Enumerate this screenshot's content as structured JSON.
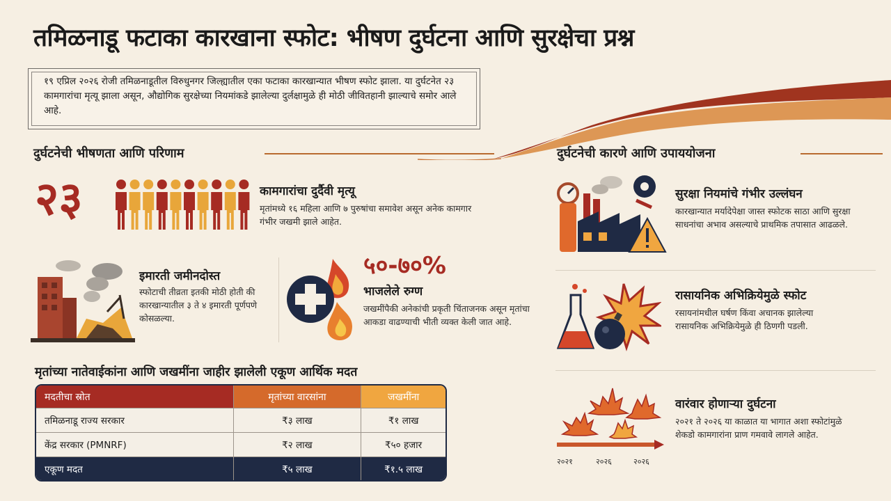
{
  "title": "तमिळनाडू फटाका कारखाना स्फोट: भीषण दुर्घटना आणि सुरक्षेचा प्रश्न",
  "intro": "१९ एप्रिल २०२६ रोजी तमिळनाडूतील विरुधुनगर जिल्ह्यातील एका फटाका कारखान्यात भीषण स्फोट झाला. या दुर्घटनेत २३ कामगारांचा मृत्यू झाला असून, औद्योगिक सुरक्षेच्या नियमांकडे झालेल्या दुर्लक्षामुळे ही मोठी जीवितहानी झाल्याचे समोर आले आहे.",
  "left_section": {
    "heading": "दुर्घटनेची भीषणता आणि परिणाम",
    "deaths": {
      "number": "२३",
      "title": "कामगारांचा दुर्दैवी मृत्यू",
      "text": "मृतांमध्ये १६ महिला आणि ७ पुरुषांचा समावेश असून अनेक कामगार गंभीर जखमी झाले आहेत.",
      "figure_colors": [
        "#a62b23",
        "#e8a63a",
        "#e8a63a",
        "#a62b23",
        "#e8a63a",
        "#a62b23",
        "#e8a63a",
        "#a62b23",
        "#e8a63a",
        "#a62b23"
      ]
    },
    "buildings": {
      "title": "इमारती जमीनदोस्त",
      "text": "स्फोटाची तीव्रता इतकी मोठी होती की कारखान्यातील ३ ते ४ इमारती पूर्णपणे कोसळल्या."
    },
    "burns": {
      "percent": "५०-७०%",
      "title": "भाजलेले रुग्ण",
      "text": "जखमींपैकी अनेकांची प्रकृती चिंताजनक असून मृतांचा आकडा वाढण्याची भीती व्यक्त केली जात आहे."
    }
  },
  "aid": {
    "heading": "मृतांच्या नातेवाईकांना आणि जखमींना जाहीर झालेली एकूण आर्थिक मदत",
    "headers": [
      "मदतीचा स्रोत",
      "मृतांच्या वारसांना",
      "जखमींना"
    ],
    "rows": [
      [
        "तमिळनाडू राज्य सरकार",
        "₹३ लाख",
        "₹१ लाख"
      ],
      [
        "केंद्र सरकार (PMNRF)",
        "₹२ लाख",
        "₹५० हजार"
      ]
    ],
    "total": [
      "एकूण मदत",
      "₹५ लाख",
      "₹१.५ लाख"
    ]
  },
  "right_section": {
    "heading": "दुर्घटनेची कारणे आणि उपाययोजना",
    "items": [
      {
        "title": "सुरक्षा नियमांचे गंभीर उल्लंघन",
        "text": "कारखान्यात मर्यादेपेक्षा जास्त स्फोटक साठा आणि सुरक्षा साधनांचा अभाव असल्याचे प्राथमिक तपासात आढळले."
      },
      {
        "title": "रासायनिक अभिक्रियेमुळे स्फोट",
        "text": "रसायनांमधील घर्षण किंवा अचानक झालेल्या रासायनिक अभिक्रियेमुळे ही ठिणगी पडली."
      },
      {
        "title": "वारंवार होणाऱ्या दुर्घटना",
        "text": "२०२१ ते २०२६ या काळात या भागात अशा स्फोटांमुळे शेकडो कामगारांना प्राण गमवावे लागले आहेत.",
        "timeline_labels": [
          "२०२१",
          "२०२६",
          "२०२६"
        ]
      }
    ]
  },
  "colors": {
    "primary_red": "#a62b23",
    "accent_orange": "#e8a63a",
    "navy": "#1f2a44",
    "background": "#f6efe3"
  }
}
